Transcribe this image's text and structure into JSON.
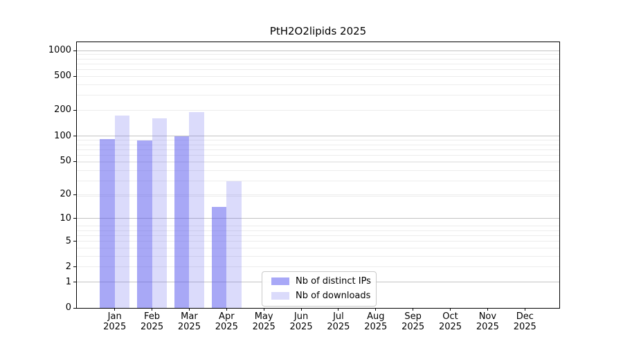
{
  "title": "PtH2O2lipids 2025",
  "colors": {
    "background": "#ffffff",
    "spine": "#000000",
    "grid_major": "#c2c2c2",
    "grid_minor": "#ececec",
    "bar_ips_solid": "#a8a8f7",
    "bar_ips_rgba": "rgba(85,85,238,0.51)",
    "bar_downloads_solid": "#dbdbfb",
    "bar_downloads_rgba": "rgba(85,85,238,0.21)"
  },
  "chart_data": {
    "type": "bar",
    "title": "PtH2O2lipids 2025",
    "categories": [
      "Jan",
      "Feb",
      "Mar",
      "Apr",
      "May",
      "Jun",
      "Jul",
      "Aug",
      "Sep",
      "Oct",
      "Nov",
      "Dec"
    ],
    "x_year_label": "2025",
    "series": [
      {
        "name": "Nb of distinct IPs",
        "color": "#a8a8f7",
        "values": [
          92,
          88,
          100,
          14,
          0,
          0,
          0,
          0,
          0,
          0,
          0,
          0
        ]
      },
      {
        "name": "Nb of downloads",
        "color": "#dbdbfb",
        "values": [
          175,
          161,
          191,
          29,
          0,
          0,
          0,
          0,
          0,
          0,
          0,
          0
        ]
      }
    ],
    "y_axis": {
      "scale": "log1p",
      "ticks": [
        0,
        1,
        2,
        5,
        10,
        20,
        50,
        100,
        200,
        500,
        1000
      ],
      "range": [
        0,
        1070
      ]
    },
    "x_axis": {
      "ticks_per_month": true
    },
    "grid": "horizontal",
    "legend": {
      "position": "lower-center",
      "labels": [
        "Nb of distinct IPs",
        "Nb of downloads"
      ]
    }
  }
}
